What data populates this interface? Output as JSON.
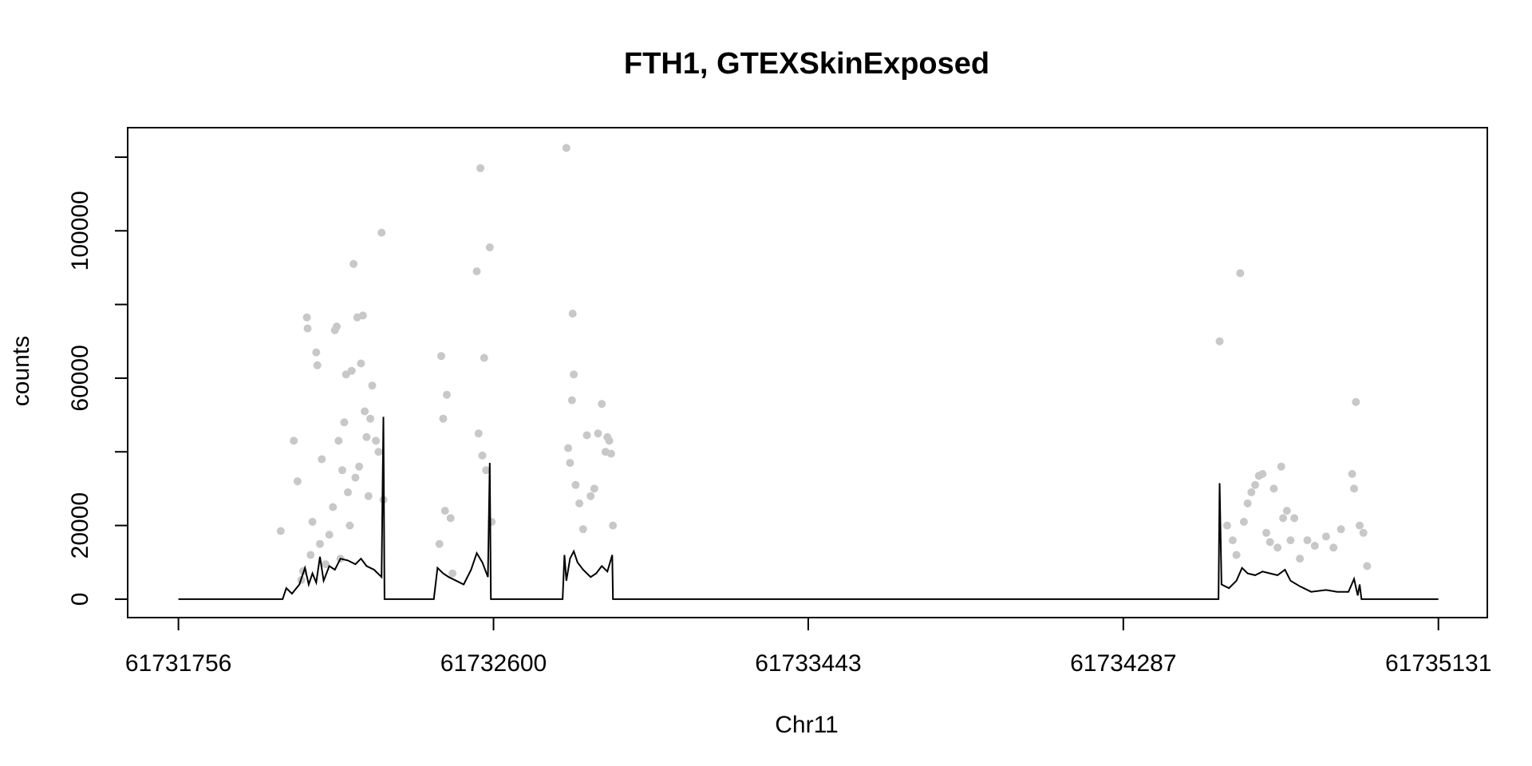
{
  "chart_data": {
    "type": "scatter",
    "title": "FTH1, GTEXSkinExposed",
    "xlabel": "Chr11",
    "ylabel": "counts",
    "xlim": [
      61731620,
      61735262
    ],
    "ylim": [
      -5000,
      128000
    ],
    "x_ticks": [
      61731756,
      61732600,
      61733443,
      61734287,
      61735131
    ],
    "x_tick_labels": [
      "61731756",
      "61732600",
      "61733443",
      "61734287",
      "61735131"
    ],
    "y_ticks": [
      0,
      20000,
      40000,
      60000,
      80000,
      100000,
      120000
    ],
    "y_tick_labels": [
      "0",
      "20000",
      "",
      "60000",
      "",
      "100000",
      ""
    ],
    "grid": false,
    "legend": "none",
    "colors": {
      "points": "#c8c8c8",
      "line": "#000000",
      "axis": "#000000"
    },
    "series": [
      {
        "type": "scatter",
        "description_points": "per-sample counts",
        "points": [
          [
            61732030,
            18500
          ],
          [
            61732065,
            43000
          ],
          [
            61732075,
            32000
          ],
          [
            61732085,
            5200
          ],
          [
            61732090,
            7600
          ],
          [
            61732100,
            76500
          ],
          [
            61732102,
            73500
          ],
          [
            61732110,
            12000
          ],
          [
            61732115,
            21000
          ],
          [
            61732125,
            67000
          ],
          [
            61732128,
            63500
          ],
          [
            61732135,
            15000
          ],
          [
            61732140,
            38000
          ],
          [
            61732150,
            9500
          ],
          [
            61732160,
            17500
          ],
          [
            61732170,
            25000
          ],
          [
            61732175,
            73000
          ],
          [
            61732180,
            74000
          ],
          [
            61732185,
            43000
          ],
          [
            61732190,
            11000
          ],
          [
            61732195,
            35000
          ],
          [
            61732200,
            48000
          ],
          [
            61732205,
            61000
          ],
          [
            61732210,
            29000
          ],
          [
            61732215,
            20000
          ],
          [
            61732220,
            62000
          ],
          [
            61732225,
            91000
          ],
          [
            61732230,
            33000
          ],
          [
            61732235,
            76500
          ],
          [
            61732240,
            36000
          ],
          [
            61732245,
            64000
          ],
          [
            61732250,
            77000
          ],
          [
            61732255,
            51000
          ],
          [
            61732260,
            44000
          ],
          [
            61732265,
            28000
          ],
          [
            61732270,
            49000
          ],
          [
            61732275,
            58000
          ],
          [
            61732285,
            43000
          ],
          [
            61732292,
            40000
          ],
          [
            61732300,
            99500
          ],
          [
            61732305,
            27000
          ],
          [
            61732455,
            15000
          ],
          [
            61732460,
            66000
          ],
          [
            61732465,
            49000
          ],
          [
            61732475,
            55500
          ],
          [
            61732470,
            24000
          ],
          [
            61732485,
            22000
          ],
          [
            61732490,
            7000
          ],
          [
            61732555,
            89000
          ],
          [
            61732560,
            45000
          ],
          [
            61732565,
            117000
          ],
          [
            61732570,
            39000
          ],
          [
            61732575,
            65500
          ],
          [
            61732580,
            35000
          ],
          [
            61732590,
            95500
          ],
          [
            61732595,
            21000
          ],
          [
            61732795,
            122500
          ],
          [
            61732800,
            41000
          ],
          [
            61732805,
            37000
          ],
          [
            61732810,
            54000
          ],
          [
            61732812,
            77500
          ],
          [
            61732815,
            61000
          ],
          [
            61732820,
            31000
          ],
          [
            61732830,
            26000
          ],
          [
            61732840,
            19000
          ],
          [
            61732850,
            44500
          ],
          [
            61732860,
            28000
          ],
          [
            61732870,
            30000
          ],
          [
            61732880,
            45000
          ],
          [
            61732890,
            53000
          ],
          [
            61732900,
            40000
          ],
          [
            61732905,
            44000
          ],
          [
            61732910,
            43000
          ],
          [
            61732915,
            39500
          ],
          [
            61732920,
            20000
          ],
          [
            61734545,
            70000
          ],
          [
            61734565,
            20000
          ],
          [
            61734580,
            16000
          ],
          [
            61734590,
            12000
          ],
          [
            61734600,
            88500
          ],
          [
            61734610,
            21000
          ],
          [
            61734620,
            26000
          ],
          [
            61734630,
            29000
          ],
          [
            61734640,
            31000
          ],
          [
            61734650,
            33500
          ],
          [
            61734660,
            34000
          ],
          [
            61734670,
            18000
          ],
          [
            61734680,
            15500
          ],
          [
            61734690,
            30000
          ],
          [
            61734700,
            14000
          ],
          [
            61734710,
            36000
          ],
          [
            61734715,
            22000
          ],
          [
            61734725,
            24000
          ],
          [
            61734735,
            16000
          ],
          [
            61734745,
            22000
          ],
          [
            61734760,
            11000
          ],
          [
            61734780,
            16000
          ],
          [
            61734800,
            14500
          ],
          [
            61734830,
            17000
          ],
          [
            61734850,
            14000
          ],
          [
            61734870,
            19000
          ],
          [
            61734900,
            34000
          ],
          [
            61734905,
            30000
          ],
          [
            61734910,
            53500
          ],
          [
            61734920,
            20000
          ],
          [
            61734930,
            18000
          ],
          [
            61734940,
            9000
          ]
        ]
      },
      {
        "type": "line",
        "description_line": "median",
        "segments": [
          [
            [
              61731756,
              0
            ],
            [
              61732035,
              0
            ],
            [
              61732045,
              3000
            ],
            [
              61732060,
              1500
            ],
            [
              61732080,
              4000
            ],
            [
              61732095,
              8500
            ],
            [
              61732105,
              4000
            ],
            [
              61732115,
              7000
            ],
            [
              61732125,
              4500
            ],
            [
              61732135,
              11500
            ],
            [
              61732145,
              5000
            ],
            [
              61732160,
              9000
            ],
            [
              61732175,
              8000
            ],
            [
              61732190,
              11000
            ],
            [
              61732210,
              10500
            ],
            [
              61732230,
              9500
            ],
            [
              61732245,
              11000
            ],
            [
              61732260,
              9000
            ],
            [
              61732280,
              8000
            ],
            [
              61732300,
              6000
            ],
            [
              61732305,
              49500
            ],
            [
              61732308,
              0
            ],
            [
              61732440,
              0
            ],
            [
              61732450,
              8500
            ],
            [
              61732465,
              7000
            ],
            [
              61732480,
              6000
            ],
            [
              61732500,
              5000
            ],
            [
              61732520,
              4000
            ],
            [
              61732540,
              8000
            ],
            [
              61732555,
              12500
            ],
            [
              61732570,
              10000
            ],
            [
              61732585,
              6000
            ],
            [
              61732590,
              37000
            ],
            [
              61732593,
              0
            ],
            [
              61732785,
              0
            ],
            [
              61732790,
              12000
            ],
            [
              61732795,
              5000
            ],
            [
              61732805,
              11000
            ],
            [
              61732815,
              13000
            ],
            [
              61732825,
              10000
            ],
            [
              61732840,
              8000
            ],
            [
              61732860,
              6000
            ],
            [
              61732875,
              7000
            ],
            [
              61732890,
              9000
            ],
            [
              61732905,
              7500
            ],
            [
              61732918,
              12000
            ],
            [
              61732920,
              0
            ],
            [
              61733500,
              0
            ],
            [
              61734542,
              0
            ],
            [
              61734545,
              31500
            ],
            [
              61734550,
              4000
            ],
            [
              61734570,
              3000
            ],
            [
              61734590,
              5000
            ],
            [
              61734605,
              8500
            ],
            [
              61734620,
              7000
            ],
            [
              61734640,
              6500
            ],
            [
              61734660,
              7500
            ],
            [
              61734680,
              7000
            ],
            [
              61734700,
              6500
            ],
            [
              61734720,
              8000
            ],
            [
              61734735,
              5000
            ],
            [
              61734760,
              3500
            ],
            [
              61734790,
              2000
            ],
            [
              61734830,
              2500
            ],
            [
              61734860,
              2000
            ],
            [
              61734890,
              2000
            ],
            [
              61734905,
              5500
            ],
            [
              61734915,
              1000
            ],
            [
              61734920,
              4000
            ],
            [
              61734925,
              0
            ],
            [
              61735131,
              0
            ]
          ]
        ]
      }
    ]
  }
}
